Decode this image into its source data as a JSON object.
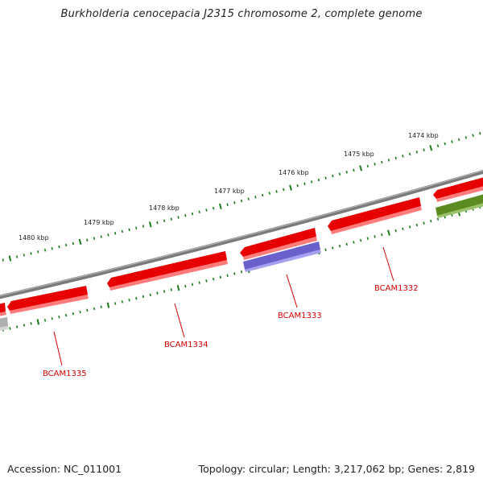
{
  "title": "Burkholderia cenocepacia J2315 chromosome 2, complete genome",
  "footer": {
    "accession": "Accession: NC_011001",
    "summary": "Topology: circular; Length: 3,217,062 bp; Genes: 2,819"
  },
  "outer_ticks": [
    {
      "label": "1474 kbp"
    },
    {
      "label": "1475 kbp"
    },
    {
      "label": "1476 kbp"
    },
    {
      "label": "1477 kbp"
    },
    {
      "label": "1478 kbp"
    },
    {
      "label": "1479 kbp"
    },
    {
      "label": "1480 kbp"
    }
  ],
  "gene_labels": [
    {
      "label": "BCAM1332"
    },
    {
      "label": "BCAM1333"
    },
    {
      "label": "BCAM1334"
    },
    {
      "label": "BCAM1335"
    }
  ],
  "colors": {
    "backbone": "#8a8a8a",
    "forward_gene": "#e60000",
    "reverse_gene_purple": "#6a60cc",
    "reverse_gene_green": "#5c8c20",
    "reverse_gene_grey": "#aaaaaa",
    "tick": "#1a7a1a",
    "label": "#d40000"
  }
}
